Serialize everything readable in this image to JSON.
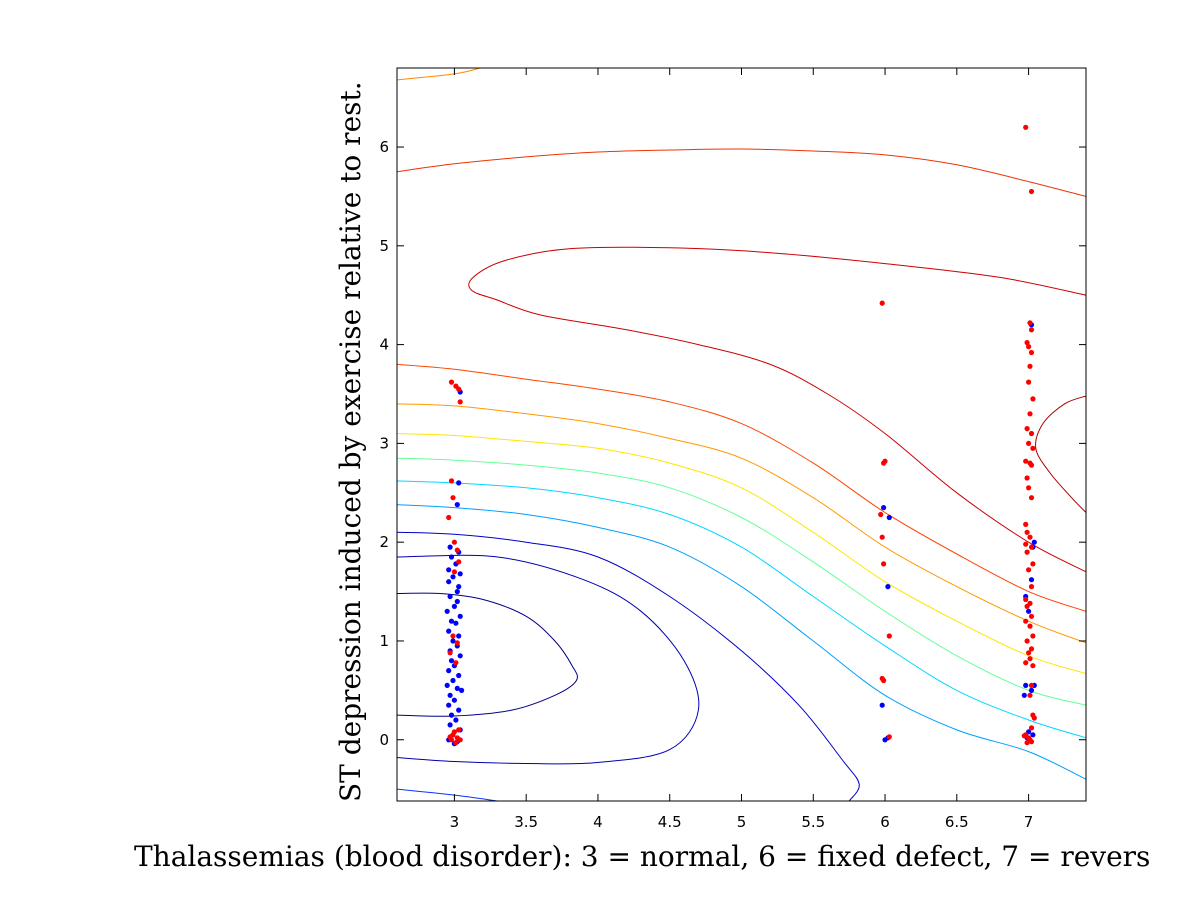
{
  "chart_data": {
    "type": "scatter",
    "title": "",
    "xlabel": "Thalassemias (blood disorder): 3 = normal, 6 = fixed defect, 7 = revers",
    "ylabel": "ST depression induced by exercise relative to rest.",
    "xlim": [
      2.6,
      7.4
    ],
    "ylim": [
      -0.62,
      6.8
    ],
    "x_ticks": [
      3,
      3.5,
      4,
      4.5,
      5,
      5.5,
      6,
      6.5,
      7
    ],
    "x_tick_labels": [
      "3",
      "3.5",
      "4",
      "4.5",
      "5",
      "5.5",
      "6",
      "6.5",
      "7"
    ],
    "y_ticks": [
      0,
      1,
      2,
      3,
      4,
      5,
      6
    ],
    "y_tick_labels": [
      "0",
      "1",
      "2",
      "3",
      "4",
      "5",
      "6"
    ],
    "grid": false,
    "box": true,
    "colors": {
      "class_red": "#ff0000",
      "class_blue": "#0000ff"
    },
    "contours": [
      {
        "color": "#0b33ff",
        "points": [
          [
            2.6,
            -0.5
          ],
          [
            3,
            -0.56
          ],
          [
            3.3,
            -0.62
          ]
        ]
      },
      {
        "color": "#0000b0",
        "points": [
          [
            2.6,
            -0.18
          ],
          [
            3,
            -0.22
          ],
          [
            3.5,
            -0.24
          ],
          [
            4,
            -0.23
          ],
          [
            4.5,
            -0.1
          ],
          [
            4.7,
            0.3
          ],
          [
            4.6,
            0.8
          ],
          [
            4.3,
            1.3
          ],
          [
            3.9,
            1.62
          ],
          [
            3.3,
            1.85
          ],
          [
            2.6,
            1.85
          ]
        ]
      },
      {
        "color": "#00008a",
        "points": [
          [
            2.6,
            0.25
          ],
          [
            3,
            0.24
          ],
          [
            3.4,
            0.3
          ],
          [
            3.7,
            0.45
          ],
          [
            3.85,
            0.6
          ],
          [
            3.82,
            0.75
          ],
          [
            3.7,
            1.0
          ],
          [
            3.5,
            1.25
          ],
          [
            3.2,
            1.42
          ],
          [
            2.9,
            1.48
          ],
          [
            2.6,
            1.48
          ]
        ]
      },
      {
        "color": "#0000c8",
        "points": [
          [
            2.6,
            2.1
          ],
          [
            3,
            2.08
          ],
          [
            3.5,
            2.0
          ],
          [
            4,
            1.85
          ],
          [
            4.5,
            1.45
          ],
          [
            5,
            0.9
          ],
          [
            5.4,
            0.35
          ],
          [
            5.7,
            -0.2
          ],
          [
            5.82,
            -0.45
          ],
          [
            5.75,
            -0.62
          ]
        ]
      },
      {
        "color": "#00a0ff",
        "points": [
          [
            2.6,
            2.38
          ],
          [
            3,
            2.35
          ],
          [
            3.5,
            2.28
          ],
          [
            4,
            2.15
          ],
          [
            4.5,
            1.95
          ],
          [
            5,
            1.55
          ],
          [
            5.5,
            1.0
          ],
          [
            6,
            0.45
          ],
          [
            6.5,
            0.1
          ],
          [
            7,
            -0.12
          ],
          [
            7.4,
            -0.4
          ]
        ]
      },
      {
        "color": "#00d8ff",
        "points": [
          [
            2.6,
            2.62
          ],
          [
            3,
            2.6
          ],
          [
            3.5,
            2.55
          ],
          [
            4,
            2.45
          ],
          [
            4.5,
            2.28
          ],
          [
            5,
            1.95
          ],
          [
            5.5,
            1.45
          ],
          [
            6,
            0.95
          ],
          [
            6.5,
            0.5
          ],
          [
            7,
            0.2
          ],
          [
            7.4,
            0.02
          ]
        ]
      },
      {
        "color": "#66ff99",
        "points": [
          [
            2.6,
            2.85
          ],
          [
            3,
            2.83
          ],
          [
            3.5,
            2.78
          ],
          [
            4,
            2.7
          ],
          [
            4.5,
            2.55
          ],
          [
            5,
            2.25
          ],
          [
            5.5,
            1.8
          ],
          [
            6,
            1.3
          ],
          [
            6.5,
            0.85
          ],
          [
            7,
            0.5
          ],
          [
            7.4,
            0.35
          ]
        ]
      },
      {
        "color": "#ffe600",
        "points": [
          [
            2.6,
            3.1
          ],
          [
            3,
            3.08
          ],
          [
            3.5,
            3.02
          ],
          [
            4,
            2.95
          ],
          [
            4.5,
            2.8
          ],
          [
            5,
            2.55
          ],
          [
            5.5,
            2.1
          ],
          [
            6,
            1.6
          ],
          [
            6.5,
            1.2
          ],
          [
            7,
            0.85
          ],
          [
            7.4,
            0.67
          ]
        ]
      },
      {
        "color": "#ff9900",
        "points": [
          [
            2.6,
            3.4
          ],
          [
            3,
            3.38
          ],
          [
            3.5,
            3.3
          ],
          [
            4,
            3.2
          ],
          [
            4.5,
            3.05
          ],
          [
            5,
            2.85
          ],
          [
            5.5,
            2.45
          ],
          [
            6,
            1.95
          ],
          [
            6.5,
            1.55
          ],
          [
            7,
            1.2
          ],
          [
            7.4,
            0.98
          ]
        ]
      },
      {
        "color": "#ff4400",
        "points": [
          [
            2.6,
            3.8
          ],
          [
            3,
            3.75
          ],
          [
            3.5,
            3.65
          ],
          [
            4,
            3.55
          ],
          [
            4.5,
            3.42
          ],
          [
            5,
            3.2
          ],
          [
            5.5,
            2.8
          ],
          [
            6,
            2.3
          ],
          [
            6.5,
            1.88
          ],
          [
            7,
            1.5
          ],
          [
            7.4,
            1.3
          ]
        ]
      },
      {
        "color": "#cc0000",
        "points": [
          [
            7.4,
            1.7
          ],
          [
            7,
            2.0
          ],
          [
            6.5,
            2.5
          ],
          [
            6,
            3.1
          ],
          [
            5.6,
            3.5
          ],
          [
            5.2,
            3.8
          ],
          [
            4.7,
            4.0
          ],
          [
            4.2,
            4.15
          ],
          [
            3.6,
            4.3
          ],
          [
            3.3,
            4.45
          ],
          [
            3.12,
            4.55
          ],
          [
            3.13,
            4.68
          ],
          [
            3.35,
            4.85
          ],
          [
            3.8,
            4.97
          ],
          [
            4.5,
            4.98
          ],
          [
            5.2,
            4.93
          ],
          [
            6,
            4.82
          ],
          [
            6.8,
            4.68
          ],
          [
            7.4,
            4.5
          ]
        ]
      },
      {
        "color": "#aa0000",
        "points": [
          [
            7.4,
            3.48
          ],
          [
            7.25,
            3.4
          ],
          [
            7.1,
            3.2
          ],
          [
            7.05,
            2.95
          ],
          [
            7.15,
            2.7
          ],
          [
            7.3,
            2.45
          ],
          [
            7.4,
            2.3
          ]
        ]
      },
      {
        "color": "#ee3300",
        "points": [
          [
            2.6,
            5.75
          ],
          [
            3,
            5.83
          ],
          [
            3.5,
            5.9
          ],
          [
            4,
            5.95
          ],
          [
            4.5,
            5.97
          ],
          [
            5,
            5.98
          ],
          [
            5.5,
            5.96
          ],
          [
            6,
            5.92
          ],
          [
            6.5,
            5.82
          ],
          [
            7,
            5.65
          ],
          [
            7.4,
            5.5
          ]
        ]
      },
      {
        "color": "#ff8800",
        "points": [
          [
            2.6,
            6.68
          ],
          [
            3,
            6.74
          ],
          [
            3.18,
            6.8
          ]
        ]
      }
    ],
    "series": [
      {
        "color": "#0000ff",
        "points": [
          [
            2.96,
            1.6
          ],
          [
            3.03,
            1.55
          ],
          [
            2.97,
            1.45
          ],
          [
            3.02,
            1.4
          ],
          [
            3.0,
            1.35
          ],
          [
            2.95,
            1.3
          ],
          [
            3.04,
            1.25
          ],
          [
            2.98,
            1.2
          ],
          [
            3.01,
            1.18
          ],
          [
            2.96,
            1.1
          ],
          [
            3.03,
            1.05
          ],
          [
            2.99,
            1.0
          ],
          [
            3.02,
            0.95
          ],
          [
            2.97,
            0.9
          ],
          [
            3.04,
            0.85
          ],
          [
            2.98,
            0.8
          ],
          [
            3.0,
            0.75
          ],
          [
            2.96,
            0.7
          ],
          [
            3.03,
            0.65
          ],
          [
            2.99,
            0.6
          ],
          [
            2.95,
            0.55
          ],
          [
            3.02,
            0.52
          ],
          [
            3.05,
            0.5
          ],
          [
            2.97,
            0.45
          ],
          [
            3.0,
            0.4
          ],
          [
            2.96,
            0.35
          ],
          [
            3.03,
            0.3
          ],
          [
            2.98,
            0.25
          ],
          [
            3.01,
            0.2
          ],
          [
            2.97,
            0.15
          ],
          [
            3.04,
            0.1
          ],
          [
            2.99,
            0.05
          ],
          [
            2.96,
            0.0
          ],
          [
            3.02,
            -0.02
          ],
          [
            3.0,
            -0.04
          ],
          [
            2.97,
            1.95
          ],
          [
            3.03,
            1.9
          ],
          [
            2.98,
            1.85
          ],
          [
            3.01,
            1.78
          ],
          [
            2.96,
            1.72
          ],
          [
            3.04,
            1.68
          ],
          [
            3.02,
            2.38
          ],
          [
            3.03,
            2.6
          ],
          [
            3.04,
            3.52
          ],
          [
            3.02,
            1.5
          ],
          [
            2.99,
            1.65
          ],
          [
            5.98,
            0.35
          ],
          [
            6.0,
            0.0
          ],
          [
            6.02,
            0.02
          ],
          [
            5.99,
            2.35
          ],
          [
            6.03,
            2.25
          ],
          [
            6.02,
            1.55
          ],
          [
            6.98,
            0.55
          ],
          [
            7.02,
            0.5
          ],
          [
            7.04,
            0.55
          ],
          [
            6.97,
            0.45
          ],
          [
            7.0,
            0.08
          ],
          [
            7.03,
            0.05
          ],
          [
            6.99,
            0.02
          ],
          [
            7.02,
            1.62
          ],
          [
            7.03,
            1.95
          ],
          [
            7.04,
            2.0
          ],
          [
            7.02,
            4.2
          ],
          [
            7.0,
            1.3
          ],
          [
            6.98,
            1.45
          ]
        ]
      },
      {
        "color": "#ff0000",
        "points": [
          [
            2.98,
            3.62
          ],
          [
            3.01,
            3.58
          ],
          [
            3.03,
            3.55
          ],
          [
            3.04,
            3.42
          ],
          [
            2.98,
            2.62
          ],
          [
            2.99,
            2.45
          ],
          [
            2.96,
            2.25
          ],
          [
            3.0,
            2.0
          ],
          [
            3.02,
            1.92
          ],
          [
            3.03,
            1.8
          ],
          [
            3.0,
            1.7
          ],
          [
            2.99,
            1.05
          ],
          [
            3.02,
            0.98
          ],
          [
            2.97,
            0.88
          ],
          [
            3.01,
            0.78
          ],
          [
            3.03,
            0.1
          ],
          [
            2.99,
            0.05
          ],
          [
            3.02,
            0.02
          ],
          [
            2.98,
            0.0
          ],
          [
            3.04,
            0.0
          ],
          [
            3.01,
            -0.03
          ],
          [
            2.97,
            0.03
          ],
          [
            3.0,
            0.08
          ],
          [
            5.98,
            4.42
          ],
          [
            5.99,
            2.8
          ],
          [
            6.0,
            2.82
          ],
          [
            5.98,
            2.05
          ],
          [
            5.97,
            2.28
          ],
          [
            5.99,
            1.78
          ],
          [
            6.03,
            1.05
          ],
          [
            5.99,
            0.6
          ],
          [
            5.98,
            0.62
          ],
          [
            6.03,
            0.03
          ],
          [
            6.98,
            6.2
          ],
          [
            7.02,
            5.55
          ],
          [
            7.01,
            4.22
          ],
          [
            7.02,
            4.15
          ],
          [
            6.99,
            4.02
          ],
          [
            7.0,
            3.98
          ],
          [
            7.02,
            3.92
          ],
          [
            7.01,
            3.78
          ],
          [
            7.0,
            3.62
          ],
          [
            7.03,
            3.45
          ],
          [
            7.01,
            3.3
          ],
          [
            6.99,
            3.15
          ],
          [
            7.02,
            3.1
          ],
          [
            7.0,
            3.0
          ],
          [
            7.03,
            2.95
          ],
          [
            6.98,
            2.82
          ],
          [
            7.01,
            2.8
          ],
          [
            7.02,
            2.78
          ],
          [
            6.99,
            2.65
          ],
          [
            7.0,
            2.55
          ],
          [
            7.02,
            2.45
          ],
          [
            6.98,
            2.18
          ],
          [
            6.99,
            2.1
          ],
          [
            7.01,
            2.05
          ],
          [
            6.98,
            1.98
          ],
          [
            7.02,
            1.95
          ],
          [
            6.99,
            1.9
          ],
          [
            7.03,
            1.78
          ],
          [
            7.0,
            1.72
          ],
          [
            7.02,
            1.55
          ],
          [
            6.98,
            1.42
          ],
          [
            7.01,
            1.38
          ],
          [
            6.99,
            1.35
          ],
          [
            7.02,
            1.25
          ],
          [
            6.98,
            1.2
          ],
          [
            7.01,
            1.15
          ],
          [
            7.03,
            1.05
          ],
          [
            6.99,
            1.0
          ],
          [
            7.02,
            0.92
          ],
          [
            7.0,
            0.88
          ],
          [
            7.01,
            0.82
          ],
          [
            6.98,
            0.78
          ],
          [
            7.03,
            0.75
          ],
          [
            7.02,
            0.55
          ],
          [
            7.01,
            0.45
          ],
          [
            7.03,
            0.25
          ],
          [
            7.04,
            0.22
          ],
          [
            7.02,
            0.12
          ],
          [
            6.98,
            0.05
          ],
          [
            7.0,
            0.02
          ],
          [
            7.01,
            0.0
          ],
          [
            6.99,
            -0.03
          ],
          [
            7.02,
            -0.02
          ],
          [
            6.97,
            0.04
          ]
        ]
      }
    ]
  }
}
